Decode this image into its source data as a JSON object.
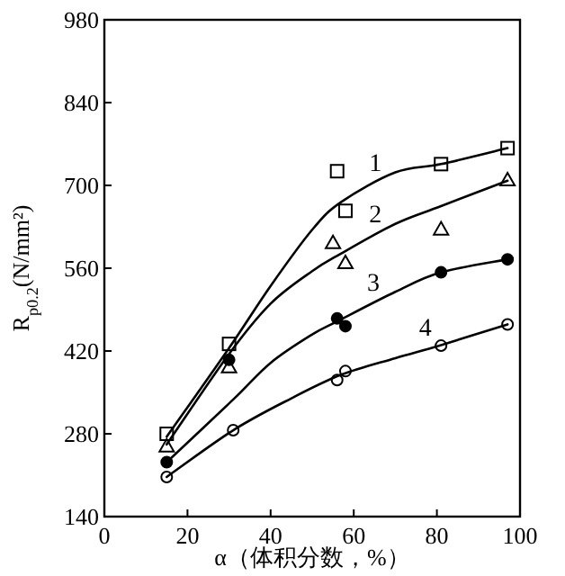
{
  "chart_data": {
    "type": "scatter",
    "xlabel": "α（体积分数，%）",
    "ylabel": "R$_{p0.2}$(N/mm²)",
    "xlim": [
      0,
      100
    ],
    "xticks": [
      0,
      20,
      40,
      60,
      80,
      100
    ],
    "ylim": [
      140,
      980
    ],
    "yticks": [
      140,
      280,
      420,
      560,
      700,
      840,
      980
    ],
    "grid": false,
    "series": [
      {
        "marker": "square",
        "color": "#ffffff",
        "x": [
          15,
          30,
          56,
          58,
          81,
          97
        ],
        "values": [
          280,
          432,
          724,
          657,
          736,
          763
        ]
      },
      {
        "marker": "triangle",
        "color": "#ffffff",
        "x": [
          15,
          30,
          55,
          58,
          81,
          97
        ],
        "values": [
          259,
          393,
          603,
          569,
          626,
          709
        ]
      },
      {
        "marker": "circle",
        "color": "#000000",
        "x": [
          15,
          30,
          56,
          58,
          81,
          97
        ],
        "values": [
          232,
          405,
          475,
          462,
          553,
          575
        ]
      },
      {
        "marker": "circle",
        "color": "#ffffff",
        "x": [
          15,
          31,
          56,
          58,
          81,
          97
        ],
        "values": [
          207,
          286,
          371,
          386,
          429,
          465
        ]
      },
      {
        "type": "line",
        "name": "1",
        "color": "#000000",
        "line_style": "solid",
        "x": [
          15,
          30,
          40,
          50,
          57,
          70,
          81,
          97
        ],
        "values": [
          275,
          425,
          530,
          625,
          672,
          722,
          736,
          763
        ]
      },
      {
        "type": "line",
        "name": "2",
        "color": "#000000",
        "line_style": "solid",
        "x": [
          15,
          30,
          40,
          50,
          57,
          70,
          81,
          97
        ],
        "values": [
          262,
          415,
          500,
          555,
          585,
          635,
          665,
          708
        ]
      },
      {
        "type": "line",
        "name": "3",
        "color": "#000000",
        "line_style": "solid",
        "x": [
          15,
          31,
          40,
          50,
          56,
          70,
          81,
          97
        ],
        "values": [
          232,
          338,
          400,
          448,
          470,
          520,
          553,
          575
        ]
      },
      {
        "type": "line",
        "name": "4",
        "color": "#000000",
        "line_style": "solid",
        "x": [
          15,
          31,
          45,
          57,
          70,
          81,
          97
        ],
        "values": [
          207,
          286,
          340,
          380,
          408,
          430,
          465
        ]
      }
    ]
  }
}
